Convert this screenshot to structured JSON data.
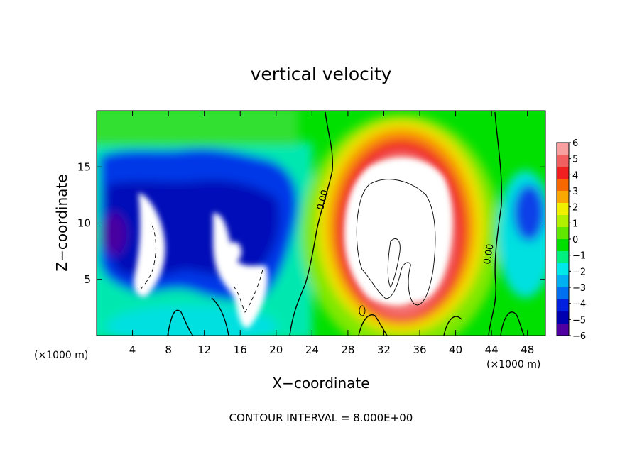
{
  "chart_data": {
    "type": "heatmap",
    "title": "vertical velocity",
    "xlabel": "X−coordinate",
    "ylabel": "Z−coordinate",
    "x_unit": "(×1000 m)",
    "x_unit_right": "(×1000 m)",
    "xlim": [
      0,
      50
    ],
    "ylim": [
      0,
      20
    ],
    "x_ticks": [
      4,
      8,
      12,
      16,
      20,
      24,
      28,
      32,
      36,
      40,
      44,
      48
    ],
    "x_tick_labels": [
      "4",
      "8",
      "12",
      "16",
      "20",
      "24",
      "28",
      "32",
      "36",
      "40",
      "44",
      "48"
    ],
    "y_ticks": [
      5,
      10,
      15
    ],
    "y_tick_labels": [
      "5",
      "10",
      "15"
    ],
    "colorbar": {
      "min": -6,
      "max": 6,
      "labels": [
        "6",
        "5",
        "4",
        "3",
        "2",
        "1",
        "0",
        "−1",
        "−2",
        "−3",
        "−4",
        "−5",
        "−6"
      ],
      "colors": [
        "#f8a0a0",
        "#f06060",
        "#f02020",
        "#f86800",
        "#f8a800",
        "#f0f000",
        "#b0f000",
        "#60e800",
        "#00e000",
        "#00f080",
        "#00e8e8",
        "#00b0f0",
        "#0070f0",
        "#0020e0",
        "#0000b0",
        "#5000a0"
      ]
    },
    "contour_labels": [
      {
        "text": "0.00",
        "x": 25.5,
        "y": 12.0,
        "angle": -75
      },
      {
        "text": "0.00",
        "x": 44.0,
        "y": 7.2,
        "angle": -80
      }
    ],
    "footer": "CONTOUR INTERVAL = 8.000E+00"
  }
}
